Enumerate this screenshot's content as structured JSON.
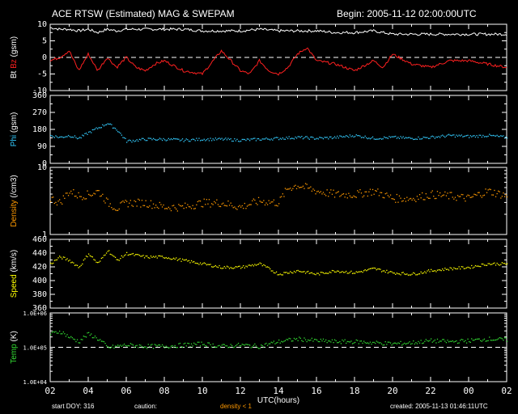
{
  "header": {
    "title": "ACE RTSW (Estimated) MAG & SWEPAM",
    "begin": "Begin: 2005-11-12 02:00:00UTC"
  },
  "footer": {
    "start_doy": "start DOY: 316",
    "caution_label": "caution:",
    "caution_text": "density < 1",
    "created": "created: 2005-11-13 01:46:11UTC",
    "caution_color": "#ff9900"
  },
  "chart_data": {
    "type": "line",
    "xlabel": "UTC(hours)",
    "x_ticks": [
      "02",
      "04",
      "06",
      "08",
      "10",
      "12",
      "14",
      "16",
      "18",
      "20",
      "22",
      "00",
      "02"
    ],
    "x_range_hours": [
      0,
      24
    ],
    "panels": [
      {
        "id": "mag",
        "ylabel_parts": [
          {
            "text": "Bt",
            "color": "#ffffff"
          },
          {
            "text": "Bz",
            "color": "#ff2020"
          },
          {
            "text": "(gsm)",
            "color": "#ffffff"
          }
        ],
        "scale": "linear",
        "ylim": [
          -10,
          10
        ],
        "yticks": [
          10,
          5,
          0,
          -5,
          -10
        ],
        "ytick_labels": [
          "10",
          "5",
          "0",
          "-5",
          "-10"
        ],
        "reference_line": 0,
        "series": [
          {
            "name": "Bt",
            "color": "#ffffff",
            "style": "line",
            "t": [
              0,
              0.5,
              1,
              1.5,
              2,
              2.5,
              3,
              3.5,
              4,
              5,
              6,
              7,
              8,
              9,
              10,
              11,
              12,
              13,
              14,
              15,
              16,
              17,
              18,
              19,
              20,
              21,
              22,
              23,
              24
            ],
            "values": [
              9,
              8.5,
              8.5,
              8,
              8.5,
              7.5,
              8.5,
              8,
              8.5,
              8.5,
              8.5,
              8.5,
              8,
              8,
              8,
              8.5,
              8,
              8,
              8,
              7.5,
              7.5,
              8,
              7,
              7,
              7,
              7,
              7,
              7,
              7
            ]
          },
          {
            "name": "Bz",
            "color": "#ff2020",
            "style": "line",
            "t": [
              0,
              0.5,
              1,
              1.5,
              2,
              2.5,
              3,
              3.5,
              4,
              4.5,
              5,
              5.5,
              6,
              7,
              8,
              9,
              10,
              10.5,
              11,
              11.5,
              12,
              12.5,
              13,
              13.5,
              14,
              15,
              16,
              17,
              17.5,
              18,
              19,
              20,
              21,
              22,
              23,
              24
            ],
            "values": [
              -1,
              0,
              2,
              -4,
              1,
              -4,
              0,
              -3,
              0,
              -3,
              -4,
              -2,
              -1,
              -4,
              -5,
              2,
              -4,
              -5,
              -1,
              -4,
              -5,
              -3,
              1,
              3,
              -1,
              -2,
              -4,
              -1,
              -3,
              1,
              -2,
              -3,
              -1,
              -1,
              -2,
              -3
            ]
          }
        ]
      },
      {
        "id": "phi",
        "ylabel_parts": [
          {
            "text": "Phi",
            "color": "#33ccff"
          },
          {
            "text": "(gsm)",
            "color": "#ffffff"
          }
        ],
        "scale": "linear",
        "ylim": [
          0,
          360
        ],
        "yticks": [
          360,
          270,
          180,
          90,
          0
        ],
        "ytick_labels": [
          "360",
          "270",
          "180",
          "90",
          "0"
        ],
        "series": [
          {
            "name": "Phi",
            "color": "#33ccff",
            "style": "dots",
            "t": [
              0,
              0.5,
              1,
              1.5,
              2,
              2.5,
              3,
              3.5,
              4,
              5,
              6,
              7,
              8,
              9,
              10,
              11,
              12,
              13,
              14,
              15,
              16,
              17,
              18,
              19,
              20,
              21,
              22,
              23,
              24
            ],
            "values": [
              150,
              140,
              150,
              135,
              165,
              190,
              215,
              180,
              120,
              130,
              130,
              125,
              130,
              130,
              125,
              130,
              135,
              140,
              135,
              140,
              150,
              135,
              140,
              135,
              140,
              150,
              145,
              150,
              140
            ]
          }
        ]
      },
      {
        "id": "density",
        "ylabel_parts": [
          {
            "text": "Density",
            "color": "#ff9900"
          },
          {
            "text": "(/cm3)",
            "color": "#ffffff"
          }
        ],
        "scale": "log",
        "ylim": [
          1,
          10
        ],
        "yticks": [
          10,
          1
        ],
        "ytick_labels": [
          "10",
          "1"
        ],
        "series": [
          {
            "name": "Density",
            "color": "#ff9900",
            "style": "dots",
            "t": [
              0,
              0.5,
              1,
              1.5,
              2,
              2.5,
              3,
              3.5,
              4,
              5,
              6,
              7,
              8,
              9,
              10,
              11,
              12,
              12.5,
              13,
              14,
              15,
              16,
              17,
              18,
              19,
              20,
              21,
              22,
              23,
              24
            ],
            "values": [
              3.5,
              3,
              4.5,
              3.8,
              4,
              4.5,
              3,
              2.5,
              3,
              3,
              2.6,
              2.6,
              3,
              3,
              2.6,
              3.2,
              3,
              5,
              5.5,
              4.5,
              4,
              4,
              4.5,
              3.5,
              3.5,
              4,
              3.8,
              3.5,
              4.5,
              3.8
            ]
          }
        ]
      },
      {
        "id": "speed",
        "ylabel_parts": [
          {
            "text": "Speed",
            "color": "#ffff00"
          },
          {
            "text": "(km/s)",
            "color": "#ffffff"
          }
        ],
        "scale": "linear",
        "ylim": [
          360,
          460
        ],
        "yticks": [
          460,
          440,
          420,
          400,
          380,
          360
        ],
        "ytick_labels": [
          "460",
          "440",
          "420",
          "400",
          "380",
          "360"
        ],
        "series": [
          {
            "name": "Speed",
            "color": "#ffff00",
            "style": "dots",
            "t": [
              0,
              0.5,
              1,
              1.5,
              2,
              2.5,
              3,
              3.5,
              4,
              5,
              6,
              7,
              8,
              9,
              10,
              11,
              12,
              13,
              14,
              15,
              16,
              17,
              18,
              19,
              20,
              21,
              22,
              23,
              24
            ],
            "values": [
              425,
              435,
              430,
              420,
              440,
              425,
              445,
              430,
              440,
              435,
              435,
              430,
              425,
              420,
              420,
              425,
              410,
              415,
              410,
              415,
              412,
              418,
              412,
              410,
              415,
              418,
              420,
              425,
              425
            ]
          }
        ]
      },
      {
        "id": "temp",
        "ylabel_parts": [
          {
            "text": "Temp",
            "color": "#33dd33"
          },
          {
            "text": "(K)",
            "color": "#ffffff"
          }
        ],
        "scale": "log",
        "ylim": [
          10000,
          1000000
        ],
        "yticks": [
          1000000,
          100000,
          10000
        ],
        "ytick_labels": [
          "1.0E+06",
          "1.0E+05",
          "1.0E+04"
        ],
        "reference_line": 100000,
        "series": [
          {
            "name": "Temp",
            "color": "#33dd33",
            "style": "dots",
            "t": [
              0,
              0.5,
              1,
              1.5,
              2,
              2.5,
              3,
              4,
              5,
              6,
              7,
              8,
              9,
              10,
              11,
              12,
              13,
              14,
              15,
              16,
              17,
              18,
              19,
              20,
              21,
              22,
              23,
              24
            ],
            "values": [
              250000,
              300000,
              200000,
              150000,
              250000,
              180000,
              100000,
              120000,
              110000,
              110000,
              120000,
              130000,
              110000,
              120000,
              110000,
              150000,
              180000,
              160000,
              150000,
              150000,
              140000,
              130000,
              140000,
              160000,
              150000,
              160000,
              180000,
              170000
            ]
          }
        ]
      }
    ]
  }
}
